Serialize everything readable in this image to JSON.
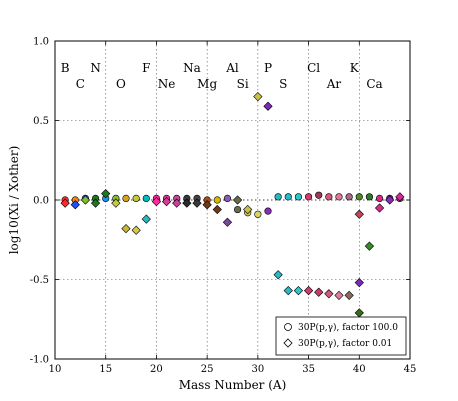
{
  "chart_data": {
    "type": "scatter",
    "xlabel": "Mass Number (A)",
    "ylabel": "log10(Xi / Xother)",
    "xlim": [
      10,
      45
    ],
    "ylim": [
      -1.0,
      1.0
    ],
    "xticks": [
      10,
      15,
      20,
      25,
      30,
      35,
      40,
      45
    ],
    "yticks": [
      -1.0,
      -0.5,
      0.0,
      0.5,
      1.0
    ],
    "grid": true,
    "legend_position": "bottom-right",
    "element_labels": [
      {
        "text": "B",
        "x": 11,
        "row": 1
      },
      {
        "text": "C",
        "x": 12.5,
        "row": 2
      },
      {
        "text": "N",
        "x": 14,
        "row": 1
      },
      {
        "text": "O",
        "x": 16.5,
        "row": 2
      },
      {
        "text": "F",
        "x": 19,
        "row": 1
      },
      {
        "text": "Ne",
        "x": 21,
        "row": 2
      },
      {
        "text": "Na",
        "x": 23.5,
        "row": 1
      },
      {
        "text": "Mg",
        "x": 25,
        "row": 2
      },
      {
        "text": "Al",
        "x": 27.5,
        "row": 1
      },
      {
        "text": "Si",
        "x": 28.5,
        "row": 2
      },
      {
        "text": "P",
        "x": 31,
        "row": 1
      },
      {
        "text": "S",
        "x": 32.5,
        "row": 2
      },
      {
        "text": "Cl",
        "x": 35.5,
        "row": 1
      },
      {
        "text": "Ar",
        "x": 37.5,
        "row": 2
      },
      {
        "text": "K",
        "x": 39.5,
        "row": 1
      },
      {
        "text": "Ca",
        "x": 41.5,
        "row": 2
      }
    ],
    "series": [
      {
        "name": "30P(p,γ), factor 100.0",
        "marker": "circle",
        "points": [
          {
            "x": 11,
            "y": 0.0,
            "color": "#ff2a2a"
          },
          {
            "x": 12,
            "y": 0.0,
            "color": "#ff7f00"
          },
          {
            "x": 13,
            "y": 0.01,
            "color": "#1f4fff"
          },
          {
            "x": 14,
            "y": 0.01,
            "color": "#1a7a1a"
          },
          {
            "x": 15,
            "y": 0.01,
            "color": "#1e90ff"
          },
          {
            "x": 16,
            "y": 0.01,
            "color": "#7bbf2a"
          },
          {
            "x": 17,
            "y": 0.01,
            "color": "#d6a21f"
          },
          {
            "x": 18,
            "y": 0.01,
            "color": "#c8c83a"
          },
          {
            "x": 19,
            "y": 0.01,
            "color": "#00bcbc"
          },
          {
            "x": 20,
            "y": 0.01,
            "color": "#ff2aa0"
          },
          {
            "x": 21,
            "y": 0.01,
            "color": "#d63a9a"
          },
          {
            "x": 22,
            "y": 0.01,
            "color": "#c8429a"
          },
          {
            "x": 23,
            "y": 0.01,
            "color": "#3a3a3a"
          },
          {
            "x": 24,
            "y": 0.01,
            "color": "#444444"
          },
          {
            "x": 25,
            "y": 0.0,
            "color": "#a84a1a"
          },
          {
            "x": 26,
            "y": 0.0,
            "color": "#d4b800"
          },
          {
            "x": 27,
            "y": 0.01,
            "color": "#8a5ab8"
          },
          {
            "x": 28,
            "y": -0.06,
            "color": "#6a6a4a"
          },
          {
            "x": 29,
            "y": -0.08,
            "color": "#c8c048"
          },
          {
            "x": 30,
            "y": -0.09,
            "color": "#d4d46a"
          },
          {
            "x": 31,
            "y": -0.07,
            "color": "#8a2ab8"
          },
          {
            "x": 32,
            "y": 0.02,
            "color": "#2ab8b8"
          },
          {
            "x": 33,
            "y": 0.02,
            "color": "#2ab8c8"
          },
          {
            "x": 34,
            "y": 0.02,
            "color": "#2ac8c8"
          },
          {
            "x": 35,
            "y": 0.02,
            "color": "#d43a6a"
          },
          {
            "x": 36,
            "y": 0.03,
            "color": "#9a3a5a"
          },
          {
            "x": 37,
            "y": 0.02,
            "color": "#d45a7a"
          },
          {
            "x": 38,
            "y": 0.02,
            "color": "#e07a9a"
          },
          {
            "x": 39,
            "y": 0.02,
            "color": "#a86a8a"
          },
          {
            "x": 40,
            "y": 0.02,
            "color": "#4a8a2a"
          },
          {
            "x": 41,
            "y": 0.02,
            "color": "#2a7a2a"
          },
          {
            "x": 42,
            "y": 0.01,
            "color": "#d42a8a"
          },
          {
            "x": 43,
            "y": 0.01,
            "color": "#7a2ab8"
          },
          {
            "x": 44,
            "y": 0.01,
            "color": "#d42aa0"
          }
        ]
      },
      {
        "name": "30P(p,γ), factor 0.01",
        "marker": "diamond",
        "points": [
          {
            "x": 11,
            "y": -0.02,
            "color": "#ff2a2a"
          },
          {
            "x": 12,
            "y": -0.03,
            "color": "#1f4fff"
          },
          {
            "x": 13,
            "y": 0.0,
            "color": "#7bbf2a"
          },
          {
            "x": 14,
            "y": -0.02,
            "color": "#1a7a1a"
          },
          {
            "x": 15,
            "y": 0.04,
            "color": "#1a7a1a"
          },
          {
            "x": 16,
            "y": -0.02,
            "color": "#c8c83a"
          },
          {
            "x": 17,
            "y": -0.18,
            "color": "#c8b83a"
          },
          {
            "x": 18,
            "y": -0.19,
            "color": "#d4c84a"
          },
          {
            "x": 19,
            "y": -0.12,
            "color": "#2ab8b8"
          },
          {
            "x": 20,
            "y": -0.01,
            "color": "#ff2aa0"
          },
          {
            "x": 21,
            "y": -0.01,
            "color": "#d43a9a"
          },
          {
            "x": 22,
            "y": -0.02,
            "color": "#c8429a"
          },
          {
            "x": 23,
            "y": -0.02,
            "color": "#2a2a2a"
          },
          {
            "x": 24,
            "y": -0.02,
            "color": "#3a3a3a"
          },
          {
            "x": 25,
            "y": -0.03,
            "color": "#6a3a1a"
          },
          {
            "x": 26,
            "y": -0.06,
            "color": "#6a3a1a"
          },
          {
            "x": 27,
            "y": -0.14,
            "color": "#7a4a9a"
          },
          {
            "x": 28,
            "y": 0.0,
            "color": "#6a6a4a"
          },
          {
            "x": 29,
            "y": -0.06,
            "color": "#c8c048"
          },
          {
            "x": 30,
            "y": 0.65,
            "color": "#c8c048"
          },
          {
            "x": 31,
            "y": 0.59,
            "color": "#7a2ab8"
          },
          {
            "x": 32,
            "y": -0.47,
            "color": "#2ab8c8"
          },
          {
            "x": 33,
            "y": -0.57,
            "color": "#2ab8c8"
          },
          {
            "x": 34,
            "y": -0.57,
            "color": "#2ac8c8"
          },
          {
            "x": 35,
            "y": -0.57,
            "color": "#d43a6a"
          },
          {
            "x": 36,
            "y": -0.58,
            "color": "#c83a6a"
          },
          {
            "x": 37,
            "y": -0.59,
            "color": "#d45a7a"
          },
          {
            "x": 38,
            "y": -0.6,
            "color": "#e07a9a"
          },
          {
            "x": 39,
            "y": -0.6,
            "color": "#8a6a5a"
          },
          {
            "x": 40,
            "y": -0.09,
            "color": "#b84a5a"
          },
          {
            "x": 40,
            "y": -0.52,
            "color": "#7a2ab8"
          },
          {
            "x": 40,
            "y": -0.71,
            "color": "#3a6a1a"
          },
          {
            "x": 41,
            "y": -0.29,
            "color": "#3a8a2a"
          },
          {
            "x": 42,
            "y": -0.05,
            "color": "#d42a8a"
          },
          {
            "x": 43,
            "y": 0.0,
            "color": "#8a2ab8"
          },
          {
            "x": 44,
            "y": 0.02,
            "color": "#d42aa0"
          }
        ]
      }
    ]
  }
}
